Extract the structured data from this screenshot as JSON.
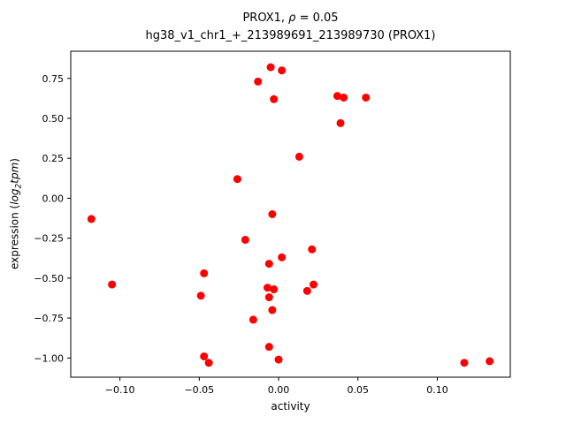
{
  "chart_data": {
    "type": "scatter",
    "title": {
      "line1_prefix": "PROX1, ",
      "rho": "ρ",
      "line1_suffix": " = 0.05",
      "line2": "hg38_v1_chr1_+_213989691_213989730 (PROX1)"
    },
    "xlabel": "activity",
    "ylabel": {
      "prefix": "expression (",
      "math_word": "log",
      "math_sub": "2",
      "math_word2": "tpm",
      "suffix": ")"
    },
    "marker_color": "#ff0000",
    "axis_color": "#000000",
    "background_color": "#ffffff",
    "legend": "none",
    "grid": false,
    "xlim": [
      -0.131,
      0.146
    ],
    "ylim": [
      -1.12,
      0.92
    ],
    "xticks": [
      -0.1,
      -0.05,
      0.0,
      0.05,
      0.1
    ],
    "yticks": [
      0.75,
      0.5,
      0.25,
      0.0,
      -0.25,
      -0.5,
      -0.75,
      -1.0
    ],
    "points": [
      [
        -0.118,
        -0.13
      ],
      [
        -0.105,
        -0.54
      ],
      [
        -0.049,
        -0.61
      ],
      [
        -0.047,
        -0.47
      ],
      [
        -0.047,
        -0.99
      ],
      [
        -0.044,
        -1.03
      ],
      [
        -0.026,
        0.12
      ],
      [
        -0.021,
        -0.26
      ],
      [
        -0.016,
        -0.76
      ],
      [
        -0.013,
        0.73
      ],
      [
        -0.005,
        0.82
      ],
      [
        0.002,
        0.8
      ],
      [
        -0.003,
        0.62
      ],
      [
        -0.004,
        -0.1
      ],
      [
        -0.006,
        -0.41
      ],
      [
        0.002,
        -0.37
      ],
      [
        -0.007,
        -0.56
      ],
      [
        -0.003,
        -0.57
      ],
      [
        -0.006,
        -0.62
      ],
      [
        -0.004,
        -0.7
      ],
      [
        -0.006,
        -0.93
      ],
      [
        0.0,
        -1.01
      ],
      [
        0.013,
        0.26
      ],
      [
        0.021,
        -0.32
      ],
      [
        0.022,
        -0.54
      ],
      [
        0.018,
        -0.58
      ],
      [
        0.037,
        0.64
      ],
      [
        0.041,
        0.63
      ],
      [
        0.039,
        0.47
      ],
      [
        0.055,
        0.63
      ],
      [
        0.117,
        -1.03
      ],
      [
        0.133,
        -1.02
      ]
    ]
  }
}
